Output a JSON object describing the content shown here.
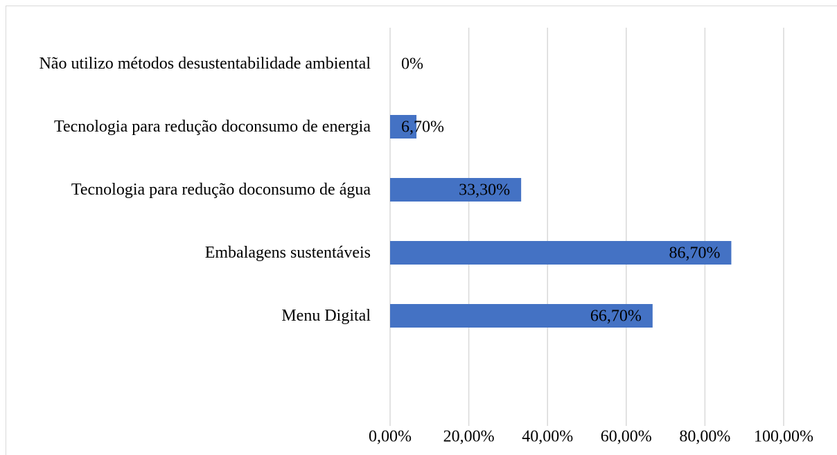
{
  "chart_data": {
    "type": "hbar",
    "categories": [
      "Não utilizo métodos desustentabilidade ambiental",
      "Tecnologia para redução doconsumo de energia",
      "Tecnologia para redução doconsumo de água",
      "Embalagens sustentáveis",
      "Menu Digital"
    ],
    "values": [
      0,
      6.7,
      33.3,
      86.7,
      66.7
    ],
    "value_labels": [
      "0%",
      "6,70%",
      "33,30%",
      "86,70%",
      "66,70%"
    ],
    "color": "#4472c4",
    "xlim": [
      0,
      100
    ],
    "xticks": [
      {
        "value": 0,
        "label": "0,00%"
      },
      {
        "value": 20,
        "label": "20,00%"
      },
      {
        "value": 40,
        "label": "40,00%"
      },
      {
        "value": 60,
        "label": "60,00%"
      },
      {
        "value": 80,
        "label": "80,00%"
      },
      {
        "value": 100,
        "label": "100,00%"
      }
    ],
    "grid": true
  }
}
